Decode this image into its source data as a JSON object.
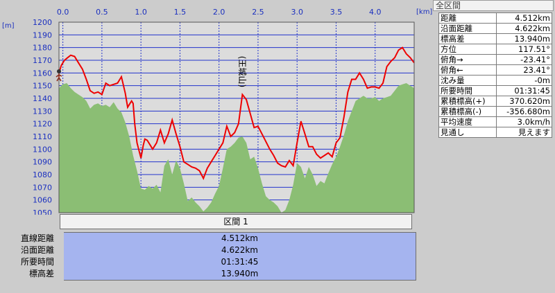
{
  "chart_data": {
    "type": "area",
    "xunit": "[km]",
    "yunit": "[m]",
    "xlim": [
      -0.05,
      4.5
    ],
    "ylim": [
      1050,
      1200
    ],
    "x_ticks": [
      "0.0",
      "0.5",
      "1.0",
      "1.5",
      "2.0",
      "2.5",
      "3.0",
      "3.5",
      "4.0"
    ],
    "x_tick_values": [
      0,
      0.5,
      1,
      1.5,
      2,
      2.5,
      3,
      3.5,
      4
    ],
    "y_ticks": [
      1050,
      1060,
      1070,
      1080,
      1090,
      1100,
      1110,
      1120,
      1130,
      1140,
      1150,
      1160,
      1170,
      1180,
      1190,
      1200
    ],
    "annotation": "(王城山)",
    "annotation_x": 2.26,
    "annotation_y": 1161,
    "series": [
      {
        "role": "route-elevation-line",
        "color": "#ee0000",
        "x": [
          -0.05,
          -0.02,
          0.02,
          0.06,
          0.1,
          0.15,
          0.2,
          0.25,
          0.3,
          0.35,
          0.4,
          0.45,
          0.5,
          0.55,
          0.6,
          0.65,
          0.7,
          0.75,
          0.8,
          0.83,
          0.86,
          0.88,
          0.9,
          0.92,
          0.95,
          1.0,
          1.03,
          1.05,
          1.08,
          1.12,
          1.15,
          1.2,
          1.25,
          1.3,
          1.35,
          1.4,
          1.45,
          1.5,
          1.55,
          1.6,
          1.65,
          1.7,
          1.75,
          1.8,
          1.85,
          1.9,
          1.95,
          2.0,
          2.05,
          2.1,
          2.15,
          2.2,
          2.25,
          2.3,
          2.35,
          2.4,
          2.45,
          2.5,
          2.55,
          2.6,
          2.65,
          2.7,
          2.75,
          2.8,
          2.85,
          2.9,
          2.95,
          3.0,
          3.05,
          3.1,
          3.15,
          3.2,
          3.25,
          3.3,
          3.35,
          3.4,
          3.45,
          3.5,
          3.55,
          3.6,
          3.65,
          3.7,
          3.75,
          3.8,
          3.85,
          3.9,
          3.95,
          4.0,
          4.05,
          4.1,
          4.15,
          4.2,
          4.25,
          4.3,
          4.35,
          4.4,
          4.45,
          4.5
        ],
        "values": [
          1160,
          1166,
          1170,
          1172,
          1174,
          1173,
          1168,
          1163,
          1155,
          1146,
          1144,
          1145,
          1143,
          1152,
          1150,
          1151,
          1152,
          1157,
          1144,
          1133,
          1136,
          1138,
          1136,
          1120,
          1105,
          1093,
          1103,
          1108,
          1107,
          1103,
          1100,
          1105,
          1115,
          1105,
          1112,
          1123,
          1112,
          1102,
          1090,
          1088,
          1086,
          1085,
          1083,
          1077,
          1085,
          1090,
          1095,
          1100,
          1105,
          1118,
          1110,
          1113,
          1120,
          1143,
          1139,
          1128,
          1117,
          1118,
          1112,
          1106,
          1100,
          1095,
          1089,
          1087,
          1086,
          1091,
          1087,
          1105,
          1122,
          1112,
          1102,
          1102,
          1096,
          1093,
          1095,
          1097,
          1094,
          1105,
          1109,
          1125,
          1145,
          1155,
          1155,
          1160,
          1155,
          1148,
          1149,
          1149,
          1148,
          1152,
          1165,
          1169,
          1172,
          1178,
          1180,
          1175,
          1172,
          1168
        ]
      },
      {
        "role": "cross-section-terrain",
        "color": "#8bbe74",
        "x": [
          -0.05,
          0.0,
          0.05,
          0.1,
          0.15,
          0.2,
          0.25,
          0.3,
          0.35,
          0.4,
          0.45,
          0.5,
          0.55,
          0.6,
          0.65,
          0.7,
          0.75,
          0.8,
          0.85,
          0.9,
          0.95,
          1.0,
          1.05,
          1.1,
          1.15,
          1.2,
          1.25,
          1.3,
          1.35,
          1.4,
          1.45,
          1.5,
          1.55,
          1.6,
          1.65,
          1.7,
          1.75,
          1.8,
          1.85,
          1.9,
          1.95,
          2.0,
          2.05,
          2.1,
          2.15,
          2.2,
          2.25,
          2.3,
          2.35,
          2.4,
          2.45,
          2.5,
          2.55,
          2.6,
          2.65,
          2.7,
          2.75,
          2.8,
          2.85,
          2.9,
          2.95,
          3.0,
          3.05,
          3.1,
          3.15,
          3.2,
          3.25,
          3.3,
          3.35,
          3.4,
          3.45,
          3.5,
          3.55,
          3.6,
          3.65,
          3.7,
          3.75,
          3.8,
          3.85,
          3.9,
          3.95,
          4.0,
          4.05,
          4.1,
          4.15,
          4.2,
          4.25,
          4.3,
          4.35,
          4.4,
          4.45,
          4.5
        ],
        "values": [
          1148,
          1151,
          1152,
          1148,
          1145,
          1143,
          1141,
          1138,
          1132,
          1135,
          1136,
          1134,
          1135,
          1133,
          1137,
          1132,
          1129,
          1121,
          1110,
          1095,
          1083,
          1069,
          1068,
          1071,
          1069,
          1072,
          1066,
          1087,
          1092,
          1080,
          1091,
          1085,
          1073,
          1059,
          1062,
          1058,
          1055,
          1051,
          1054,
          1058,
          1065,
          1071,
          1085,
          1100,
          1102,
          1105,
          1109,
          1110,
          1105,
          1092,
          1094,
          1085,
          1073,
          1063,
          1060,
          1058,
          1055,
          1050,
          1052,
          1060,
          1072,
          1089,
          1086,
          1077,
          1086,
          1080,
          1071,
          1075,
          1073,
          1081,
          1088,
          1094,
          1102,
          1111,
          1122,
          1130,
          1138,
          1140,
          1142,
          1140,
          1140,
          1141,
          1138,
          1140,
          1141,
          1142,
          1146,
          1150,
          1151,
          1152,
          1150,
          1148
        ]
      }
    ]
  },
  "segment": {
    "tab_label": "区間 1",
    "rows": [
      {
        "label": "直線距離",
        "value": "4.512km"
      },
      {
        "label": "沿面距離",
        "value": "4.622km"
      },
      {
        "label": "所要時間",
        "value": "01:31:45"
      },
      {
        "label": "標高差",
        "value": "13.940m"
      }
    ]
  },
  "summary": {
    "title": "全区間",
    "rows": [
      {
        "label": "距離",
        "value": "4.512km"
      },
      {
        "label": "沿面距離",
        "value": "4.622km"
      },
      {
        "label": "標高差",
        "value": "13.940m"
      },
      {
        "label": "方位",
        "value": "117.51°"
      },
      {
        "label": "俯角→",
        "value": "-23.41°"
      },
      {
        "label": "俯角←",
        "value": "23.41°"
      },
      {
        "label": "沈み量",
        "value": "-0m"
      },
      {
        "label": "所要時間",
        "value": "01:31:45"
      },
      {
        "label": "累積標高(+)",
        "value": "370.620m"
      },
      {
        "label": "累積標高(-)",
        "value": "-356.680m"
      },
      {
        "label": "平均速度",
        "value": "3.0km/h"
      },
      {
        "label": "見通し",
        "value": "見えます"
      }
    ]
  },
  "colors": {
    "plot_bg": "#dcdcdc",
    "grid": "#2233cc",
    "terrain": "#8bbe74",
    "route": "#ee0000",
    "axis_text": "#1a2fbf",
    "value_bg": "#a5b4ef"
  },
  "icons": {
    "start_marker": "walker-icon"
  }
}
